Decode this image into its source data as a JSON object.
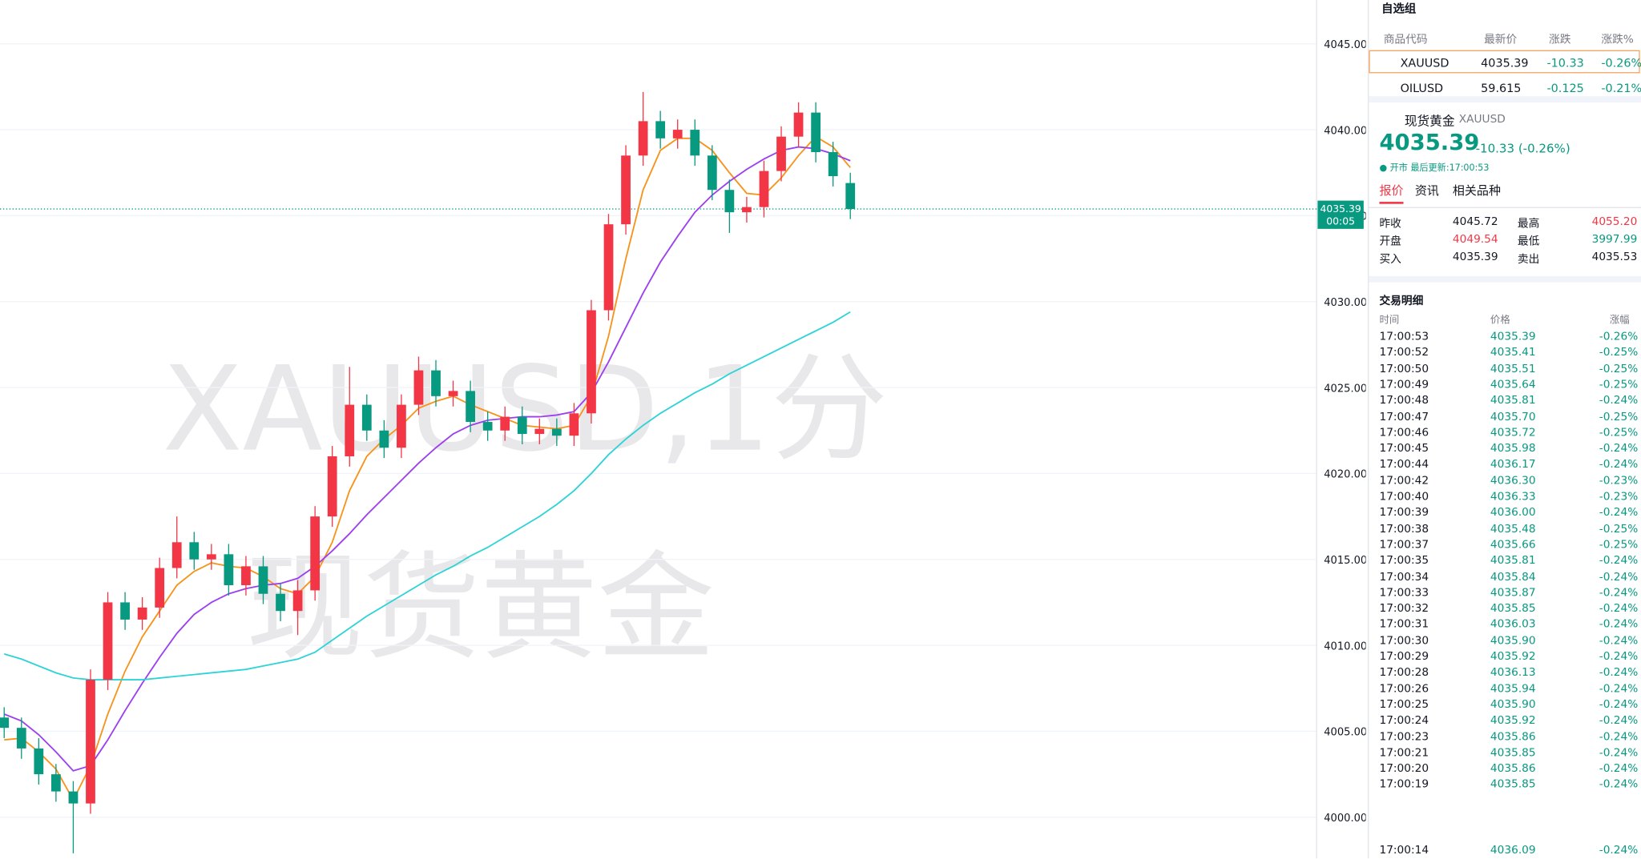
{
  "chart_data": {
    "type": "candlestick",
    "watermark": [
      "XAUUSD,1分",
      "现货黄金"
    ],
    "ylim": [
      3997.6,
      4047.55
    ],
    "yticks": [
      {
        "value": 4000,
        "label": "4000.00"
      },
      {
        "value": 4005,
        "label": "4005.00"
      },
      {
        "value": 4010,
        "label": "4010.00"
      },
      {
        "value": 4015,
        "label": "4015.00"
      },
      {
        "value": 4020,
        "label": "4020.00"
      },
      {
        "value": 4025,
        "label": "4025.00"
      },
      {
        "value": 4030,
        "label": "4030.00"
      },
      {
        "value": 4035,
        "label": "4035.00"
      },
      {
        "value": 4040,
        "label": "4040.00"
      },
      {
        "value": 4045,
        "label": "4045.00"
      }
    ],
    "grid": true,
    "up_color": "#f23645",
    "down_color": "#089981",
    "last_price": {
      "value": 4035.39,
      "label": "4035.39"
    },
    "countdown": "00:05",
    "candles": {
      "open": [
        4005.8,
        4005.2,
        4004.0,
        4002.5,
        4001.5,
        4000.8,
        4008.0,
        4012.5,
        4011.5,
        4012.2,
        4014.5,
        4016.0,
        4015.0,
        4015.3,
        4013.5,
        4014.6,
        4013.0,
        4012.0,
        4013.2,
        4017.5,
        4021.0,
        4024.0,
        4022.5,
        4021.5,
        4024.0,
        4026.0,
        4024.5,
        4024.8,
        4023.0,
        4022.5,
        4023.3,
        4022.3,
        4022.6,
        4022.2,
        4023.5,
        4029.5,
        4034.5,
        4038.5,
        4040.5,
        4039.5,
        4040.0,
        4038.5,
        4036.5,
        4035.2,
        4035.5,
        4037.6,
        4039.6,
        4041.0,
        4038.7,
        4036.9
      ],
      "high": [
        4006.4,
        4005.8,
        4004.6,
        4003.1,
        4002.1,
        4008.6,
        4013.1,
        4013.1,
        4012.8,
        4015.1,
        4017.5,
        4016.6,
        4015.9,
        4015.9,
        4015.2,
        4015.2,
        4013.6,
        4013.8,
        4018.1,
        4021.6,
        4026.2,
        4024.6,
        4023.1,
        4024.6,
        4026.8,
        4026.6,
        4025.4,
        4025.4,
        4023.6,
        4023.9,
        4023.9,
        4023.2,
        4023.2,
        4024.1,
        4030.1,
        4035.1,
        4039.1,
        4042.2,
        4041.1,
        4040.6,
        4040.6,
        4039.1,
        4037.1,
        4036.1,
        4038.2,
        4040.2,
        4041.6,
        4041.6,
        4039.3,
        4037.5
      ],
      "low": [
        4004.6,
        4003.4,
        4001.9,
        4000.9,
        3997.9,
        4000.2,
        4007.4,
        4010.9,
        4010.9,
        4011.6,
        4013.9,
        4014.4,
        4014.4,
        4012.9,
        4012.9,
        4012.4,
        4011.4,
        4010.6,
        4012.6,
        4016.9,
        4020.4,
        4021.9,
        4020.9,
        4020.9,
        4023.4,
        4023.9,
        4023.9,
        4022.4,
        4021.9,
        4021.9,
        4021.7,
        4021.7,
        4021.6,
        4021.6,
        4022.9,
        4028.9,
        4033.9,
        4037.9,
        4038.9,
        4038.9,
        4037.9,
        4035.9,
        4034.0,
        4034.6,
        4034.9,
        4037.0,
        4039.0,
        4038.1,
        4036.7,
        4034.8
      ],
      "close": [
        4005.2,
        4004.0,
        4002.5,
        4001.5,
        4000.8,
        4008.0,
        4012.5,
        4011.5,
        4012.2,
        4014.5,
        4016.0,
        4015.0,
        4015.3,
        4013.5,
        4014.6,
        4013.0,
        4012.0,
        4013.2,
        4017.5,
        4021.0,
        4024.0,
        4022.5,
        4021.5,
        4024.0,
        4026.0,
        4024.5,
        4024.8,
        4023.0,
        4022.5,
        4023.3,
        4022.3,
        4022.6,
        4022.2,
        4023.5,
        4029.5,
        4034.5,
        4038.5,
        4040.5,
        4039.5,
        4040.0,
        4038.5,
        4036.5,
        4035.2,
        4035.5,
        4037.6,
        4039.6,
        4041.0,
        4038.7,
        4037.3,
        4035.39
      ]
    },
    "series": [
      {
        "color": "#f7931a",
        "values": [
          4004.5,
          4004.6,
          4003.8,
          4002.8,
          4001.0,
          4003.0,
          4006.0,
          4008.5,
          4010.5,
          4012.0,
          4013.5,
          4014.3,
          4014.8,
          4014.6,
          4014.5,
          4014.0,
          4013.3,
          4013.0,
          4014.0,
          4016.0,
          4019.0,
          4021.0,
          4022.0,
          4022.8,
          4023.8,
          4024.2,
          4024.5,
          4024.0,
          4023.6,
          4023.2,
          4022.8,
          4022.7,
          4022.6,
          4022.8,
          4024.5,
          4028.0,
          4032.5,
          4036.5,
          4038.8,
          4039.5,
          4039.5,
          4038.8,
          4037.5,
          4036.3,
          4036.2,
          4037.2,
          4038.5,
          4039.6,
          4039.0,
          4037.8
        ]
      },
      {
        "color": "#9c3ff0",
        "values": [
          4006.0,
          4005.6,
          4004.8,
          4003.8,
          4002.7,
          4003.0,
          4004.5,
          4006.2,
          4007.8,
          4009.3,
          4010.7,
          4011.8,
          4012.5,
          4013.0,
          4013.3,
          4013.5,
          4013.6,
          4013.9,
          4014.6,
          4015.5,
          4016.5,
          4017.6,
          4018.6,
          4019.6,
          4020.6,
          4021.5,
          4022.3,
          4022.8,
          4023.1,
          4023.2,
          4023.3,
          4023.3,
          4023.4,
          4023.6,
          4024.7,
          4026.5,
          4028.5,
          4030.5,
          4032.3,
          4033.8,
          4035.2,
          4036.2,
          4037.0,
          4037.7,
          4038.3,
          4038.8,
          4039.0,
          4038.9,
          4038.6,
          4038.2
        ]
      },
      {
        "color": "#2ed3d6",
        "values": [
          4009.5,
          4009.2,
          4008.8,
          4008.4,
          4008.1,
          4008.0,
          4008.0,
          4008.0,
          4008.0,
          4008.1,
          4008.2,
          4008.3,
          4008.4,
          4008.5,
          4008.6,
          4008.8,
          4009.0,
          4009.2,
          4009.6,
          4010.3,
          4011.0,
          4011.7,
          4012.3,
          4012.9,
          4013.5,
          4014.1,
          4014.6,
          4015.2,
          4015.7,
          4016.3,
          4016.9,
          4017.5,
          4018.2,
          4019.0,
          4020.0,
          4021.1,
          4022.0,
          4022.8,
          4023.5,
          4024.1,
          4024.7,
          4025.2,
          4025.8,
          4026.3,
          4026.8,
          4027.3,
          4027.8,
          4028.3,
          4028.8,
          4029.4
        ]
      }
    ]
  },
  "watchlist": {
    "group": "自选组",
    "columns": [
      "商品代码",
      "最新价",
      "涨跌",
      "涨跌%"
    ],
    "rows": [
      [
        "XAUUSD",
        "4035.39",
        "-10.33",
        "-0.26%"
      ],
      [
        "OILUSD",
        "59.615",
        "-0.125",
        "-0.21%"
      ]
    ]
  },
  "detail": {
    "name": "现货黄金",
    "symbol": "XAUUSD",
    "price": "4035.39",
    "change": "-10.33 (-0.26%)",
    "status": "● 开市 最后更新:17:00:53",
    "tabs": [
      "报价",
      "资讯",
      "相关品种"
    ],
    "stats": [
      [
        "昨收",
        "4045.72",
        "最高",
        "4055.20"
      ],
      [
        "开盘",
        "4049.54",
        "最低",
        "3997.99"
      ],
      [
        "买入",
        "4035.39",
        "卖出",
        "4035.53"
      ]
    ]
  },
  "trades": {
    "title": "交易明细",
    "columns": [
      "时间",
      "价格",
      "涨幅"
    ],
    "rows": [
      [
        "17:00:53",
        "4035.39",
        "-0.26%"
      ],
      [
        "17:00:52",
        "4035.41",
        "-0.25%"
      ],
      [
        "17:00:50",
        "4035.51",
        "-0.25%"
      ],
      [
        "17:00:49",
        "4035.64",
        "-0.25%"
      ],
      [
        "17:00:48",
        "4035.81",
        "-0.24%"
      ],
      [
        "17:00:47",
        "4035.70",
        "-0.25%"
      ],
      [
        "17:00:46",
        "4035.72",
        "-0.25%"
      ],
      [
        "17:00:45",
        "4035.98",
        "-0.24%"
      ],
      [
        "17:00:44",
        "4036.17",
        "-0.24%"
      ],
      [
        "17:00:42",
        "4036.30",
        "-0.23%"
      ],
      [
        "17:00:40",
        "4036.33",
        "-0.23%"
      ],
      [
        "17:00:39",
        "4036.00",
        "-0.24%"
      ],
      [
        "17:00:38",
        "4035.48",
        "-0.25%"
      ],
      [
        "17:00:37",
        "4035.66",
        "-0.25%"
      ],
      [
        "17:00:35",
        "4035.81",
        "-0.24%"
      ],
      [
        "17:00:34",
        "4035.84",
        "-0.24%"
      ],
      [
        "17:00:33",
        "4035.87",
        "-0.24%"
      ],
      [
        "17:00:32",
        "4035.85",
        "-0.24%"
      ],
      [
        "17:00:31",
        "4036.03",
        "-0.24%"
      ],
      [
        "17:00:30",
        "4035.90",
        "-0.24%"
      ],
      [
        "17:00:29",
        "4035.92",
        "-0.24%"
      ],
      [
        "17:00:28",
        "4036.13",
        "-0.24%"
      ],
      [
        "17:00:26",
        "4035.94",
        "-0.24%"
      ],
      [
        "17:00:25",
        "4035.90",
        "-0.24%"
      ],
      [
        "17:00:24",
        "4035.92",
        "-0.24%"
      ],
      [
        "17:00:23",
        "4035.86",
        "-0.24%"
      ],
      [
        "17:00:21",
        "4035.85",
        "-0.24%"
      ],
      [
        "17:00:20",
        "4035.86",
        "-0.24%"
      ],
      [
        "17:00:19",
        "4035.85",
        "-0.24%"
      ],
      [
        "17:00:14",
        "4036.09",
        "-0.24%"
      ]
    ]
  }
}
